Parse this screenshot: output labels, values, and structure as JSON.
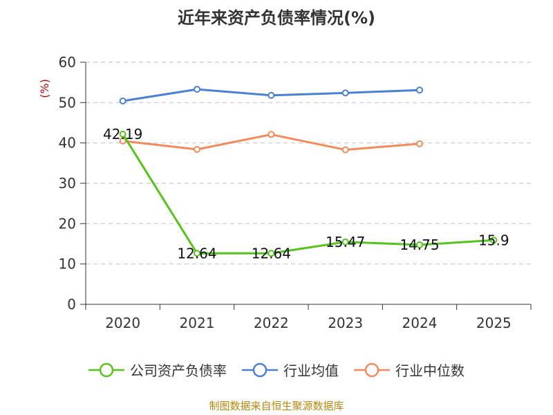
{
  "chart_data": {
    "type": "line",
    "title": "近年来资产负债率情况(%)",
    "ylabel": "(%)",
    "xlabel": "",
    "categories": [
      "2020",
      "2021",
      "2022",
      "2023",
      "2024",
      "2025"
    ],
    "ylim": [
      0,
      60
    ],
    "yticks": [
      "0",
      "10",
      "20",
      "30",
      "40",
      "50",
      "60"
    ],
    "grid": true,
    "legend_position": "bottom",
    "series": [
      {
        "name": "公司资产负债率",
        "color": "#52c41a",
        "values": [
          42.19,
          12.64,
          12.64,
          15.47,
          14.75,
          15.9
        ],
        "data_labels": [
          "42.19",
          "12.64",
          "12.64",
          "15.47",
          "14.75",
          "15.9"
        ]
      },
      {
        "name": "行业均值",
        "color": "#4a7fd6",
        "values": [
          50.4,
          53.3,
          51.8,
          52.4,
          53.1,
          null
        ]
      },
      {
        "name": "行业中位数",
        "color": "#f5895a",
        "values": [
          40.5,
          38.4,
          42.1,
          38.3,
          39.8,
          null
        ]
      }
    ]
  },
  "source_note": "制图数据来自恒生聚源数据库",
  "colors": {
    "y_label": "#cc0000",
    "grid": "#c8c8c8",
    "axis": "#333333",
    "source_note": "#b8860b"
  }
}
